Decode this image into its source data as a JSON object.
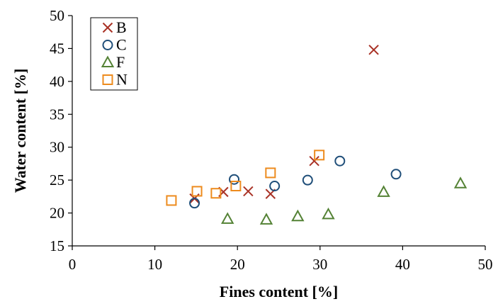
{
  "chart_data": {
    "type": "scatter",
    "title": "",
    "xlabel": "Fines content [%]",
    "ylabel": "Water content [%]",
    "xlim": [
      0,
      50
    ],
    "ylim": [
      15,
      50
    ],
    "xticks": [
      "0",
      "10",
      "20",
      "30",
      "40",
      "50"
    ],
    "yticks": [
      "15",
      "20",
      "25",
      "30",
      "35",
      "40",
      "45",
      "50"
    ],
    "grid": false,
    "legend_position": "top-left",
    "series": [
      {
        "name": "B",
        "marker": "x",
        "color": "#a93226",
        "points": [
          [
            14.8,
            22.2
          ],
          [
            18.3,
            23.2
          ],
          [
            21.3,
            23.3
          ],
          [
            24.0,
            22.9
          ],
          [
            29.3,
            27.9
          ],
          [
            36.5,
            44.8
          ]
        ]
      },
      {
        "name": "C",
        "marker": "circle",
        "color": "#1f4e79",
        "points": [
          [
            14.8,
            21.5
          ],
          [
            19.6,
            25.1
          ],
          [
            24.5,
            24.1
          ],
          [
            28.5,
            25.0
          ],
          [
            32.4,
            27.9
          ],
          [
            39.2,
            25.9
          ]
        ]
      },
      {
        "name": "F",
        "marker": "triangle",
        "color": "#548235",
        "points": [
          [
            18.8,
            19.1
          ],
          [
            23.5,
            19.0
          ],
          [
            27.3,
            19.5
          ],
          [
            31.0,
            19.8
          ],
          [
            37.7,
            23.2
          ],
          [
            47.0,
            24.5
          ]
        ]
      },
      {
        "name": "N",
        "marker": "square",
        "color": "#ed8b1e",
        "points": [
          [
            12.0,
            21.9
          ],
          [
            15.1,
            23.3
          ],
          [
            17.4,
            23.0
          ],
          [
            19.8,
            24.1
          ],
          [
            24.0,
            26.1
          ],
          [
            29.9,
            28.8
          ]
        ]
      }
    ]
  }
}
